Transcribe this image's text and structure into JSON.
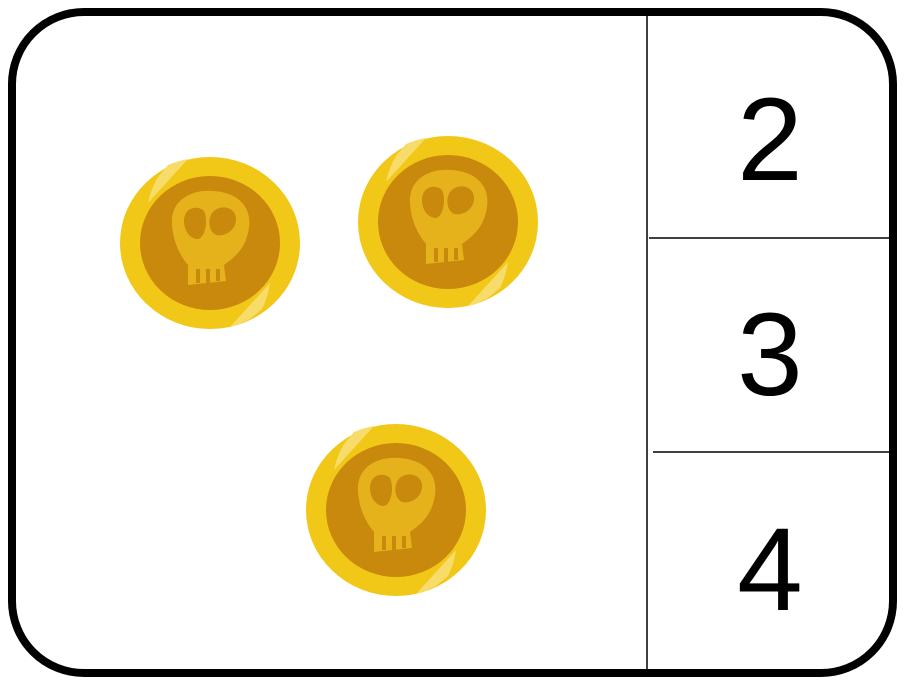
{
  "choices": [
    2,
    3,
    4
  ]
}
